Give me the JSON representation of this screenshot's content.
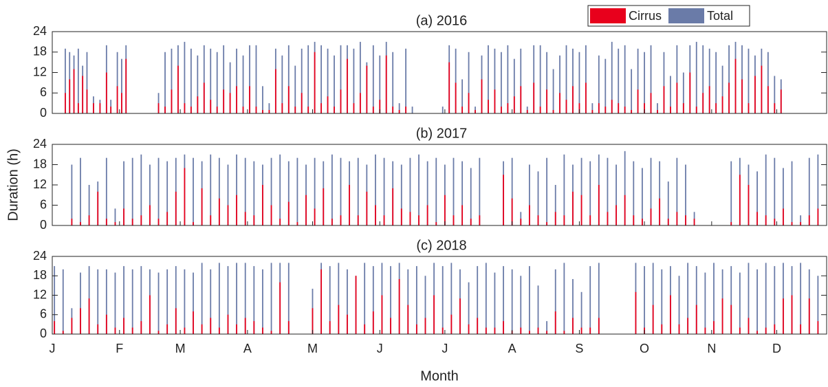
{
  "chart_data": [
    {
      "type": "bar",
      "title": "(a) 2016",
      "legend": "top-right",
      "xlim": [
        1,
        358
      ],
      "ylim": [
        0,
        24
      ],
      "yticks": [
        0,
        6,
        12,
        18,
        24
      ],
      "x": [
        7,
        9,
        11,
        13,
        15,
        17,
        20,
        23,
        26,
        28,
        31,
        33,
        35,
        50,
        53,
        56,
        59,
        62,
        65,
        68,
        71,
        74,
        77,
        80,
        83,
        86,
        89,
        92,
        95,
        98,
        101,
        104,
        107,
        110,
        113,
        116,
        119,
        122,
        125,
        128,
        131,
        134,
        137,
        140,
        143,
        146,
        149,
        152,
        155,
        158,
        161,
        164,
        167,
        181,
        184,
        187,
        190,
        193,
        196,
        199,
        202,
        205,
        208,
        211,
        214,
        217,
        220,
        223,
        226,
        229,
        232,
        235,
        238,
        241,
        244,
        247,
        250,
        253,
        256,
        259,
        262,
        265,
        268,
        271,
        274,
        277,
        280,
        283,
        286,
        289,
        292,
        295,
        298,
        301,
        304,
        307,
        310,
        313,
        316,
        319,
        322,
        325,
        328,
        331,
        334,
        337
      ],
      "series": [
        {
          "name": "Cirrus",
          "color": "#e8001c",
          "values": [
            6,
            10,
            13,
            3,
            11,
            7,
            3,
            3,
            12,
            2,
            8,
            6,
            16,
            3,
            2,
            7,
            14,
            3,
            2,
            5,
            9,
            4,
            2,
            7,
            6,
            8,
            2,
            8,
            2,
            1,
            1,
            13,
            3,
            8,
            2,
            6,
            2,
            18,
            3,
            5,
            2,
            7,
            16,
            3,
            6,
            14,
            2,
            4,
            17,
            2,
            1,
            2,
            0,
            0,
            15,
            9,
            2,
            6,
            1,
            10,
            4,
            7,
            2,
            3,
            5,
            8,
            1,
            9,
            2,
            7,
            1,
            6,
            4,
            8,
            3,
            9,
            1,
            3,
            2,
            4,
            3,
            2,
            1,
            7,
            3,
            6,
            1,
            8,
            2,
            9,
            3,
            12,
            2,
            6,
            8,
            3,
            5,
            9,
            16,
            10,
            3,
            11,
            14,
            8,
            3,
            7
          ]
        },
        {
          "name": "Total",
          "color": "#6a7ba8",
          "values": [
            19,
            18,
            17,
            19,
            14,
            18,
            5,
            4,
            20,
            4,
            18,
            16,
            20,
            6,
            18,
            19,
            20,
            21,
            19,
            17,
            20,
            19,
            18,
            20,
            15,
            19,
            17,
            20,
            20,
            8,
            3,
            19,
            17,
            20,
            14,
            19,
            20,
            21,
            20,
            19,
            17,
            20,
            20,
            19,
            21,
            15,
            20,
            17,
            21,
            18,
            3,
            19,
            2,
            2,
            20,
            19,
            10,
            18,
            2,
            17,
            20,
            19,
            18,
            20,
            16,
            19,
            2,
            20,
            20,
            18,
            13,
            17,
            20,
            19,
            18,
            20,
            3,
            17,
            16,
            21,
            19,
            20,
            13,
            19,
            18,
            20,
            3,
            18,
            11,
            20,
            12,
            20,
            21,
            20,
            19,
            18,
            14,
            20,
            21,
            20,
            19,
            17,
            19,
            18,
            11,
            10
          ]
        }
      ]
    },
    {
      "type": "bar",
      "title": "(b) 2017",
      "ylabel": "Duration (h)",
      "xlim": [
        1,
        358
      ],
      "ylim": [
        0,
        24
      ],
      "yticks": [
        0,
        6,
        12,
        18,
        24
      ],
      "x": [
        10,
        14,
        18,
        22,
        26,
        30,
        34,
        38,
        42,
        46,
        50,
        54,
        58,
        62,
        66,
        70,
        74,
        78,
        82,
        86,
        90,
        94,
        98,
        102,
        106,
        110,
        114,
        118,
        122,
        126,
        130,
        134,
        138,
        142,
        146,
        150,
        154,
        158,
        162,
        166,
        170,
        174,
        178,
        182,
        186,
        190,
        194,
        198,
        209,
        213,
        217,
        221,
        225,
        229,
        233,
        237,
        241,
        245,
        249,
        253,
        257,
        261,
        265,
        269,
        273,
        277,
        281,
        285,
        289,
        293,
        297,
        314,
        318,
        322,
        326,
        330,
        334,
        338,
        342,
        346,
        350,
        354
      ],
      "series": [
        {
          "color": "#e8001c",
          "values": [
            2,
            1,
            3,
            10,
            2,
            1,
            5,
            2,
            3,
            6,
            2,
            4,
            10,
            17,
            1,
            11,
            3,
            8,
            6,
            9,
            4,
            3,
            12,
            6,
            2,
            7,
            1,
            9,
            5,
            11,
            2,
            3,
            12,
            3,
            10,
            6,
            3,
            11,
            5,
            4,
            3,
            6,
            1,
            9,
            3,
            6,
            2,
            3,
            15,
            8,
            2,
            6,
            3,
            1,
            4,
            3,
            10,
            9,
            3,
            12,
            4,
            6,
            9,
            3,
            2,
            5,
            8,
            2,
            4,
            3,
            2,
            1,
            15,
            12,
            4,
            3,
            2,
            5,
            1,
            1,
            3,
            5
          ]
        },
        {
          "color": "#6a7ba8",
          "values": [
            18,
            20,
            12,
            13,
            20,
            5,
            19,
            20,
            21,
            18,
            20,
            19,
            20,
            21,
            20,
            19,
            21,
            20,
            18,
            21,
            20,
            19,
            18,
            20,
            21,
            19,
            20,
            18,
            20,
            19,
            21,
            20,
            19,
            20,
            18,
            21,
            20,
            19,
            18,
            20,
            21,
            19,
            20,
            18,
            20,
            19,
            17,
            20,
            19,
            20,
            4,
            18,
            16,
            20,
            12,
            21,
            18,
            20,
            19,
            21,
            20,
            18,
            22,
            19,
            17,
            20,
            19,
            13,
            20,
            18,
            4,
            19,
            20,
            18,
            16,
            21,
            20,
            17,
            19,
            3,
            20,
            21
          ]
        }
      ]
    },
    {
      "type": "bar",
      "title": "(c) 2018",
      "xlabel": "Month",
      "xlim": [
        1,
        358
      ],
      "ylim": [
        0,
        24
      ],
      "yticks": [
        0,
        6,
        12,
        18,
        24
      ],
      "xticks": [
        {
          "value": 1,
          "label": "J"
        },
        {
          "value": 32,
          "label": "F"
        },
        {
          "value": 60,
          "label": "M"
        },
        {
          "value": 91,
          "label": "A"
        },
        {
          "value": 121,
          "label": "M"
        },
        {
          "value": 152,
          "label": "J"
        },
        {
          "value": 182,
          "label": "J"
        },
        {
          "value": 213,
          "label": "A"
        },
        {
          "value": 244,
          "label": "S"
        },
        {
          "value": 274,
          "label": "O"
        },
        {
          "value": 305,
          "label": "N"
        },
        {
          "value": 335,
          "label": "D"
        }
      ],
      "x": [
        2,
        6,
        10,
        14,
        18,
        22,
        26,
        30,
        34,
        38,
        42,
        46,
        50,
        54,
        58,
        62,
        66,
        70,
        74,
        78,
        82,
        86,
        90,
        94,
        98,
        102,
        106,
        110,
        121,
        125,
        129,
        133,
        137,
        141,
        145,
        149,
        153,
        157,
        161,
        165,
        169,
        173,
        177,
        181,
        185,
        189,
        193,
        197,
        201,
        205,
        209,
        213,
        217,
        221,
        225,
        229,
        233,
        237,
        241,
        245,
        249,
        253,
        270,
        274,
        278,
        282,
        286,
        290,
        294,
        298,
        302,
        306,
        310,
        314,
        318,
        322,
        326,
        330,
        334,
        338,
        342,
        346,
        350,
        354
      ],
      "series": [
        {
          "color": "#e8001c",
          "values": [
            4,
            1,
            5,
            8,
            11,
            3,
            6,
            2,
            5,
            2,
            4,
            12,
            1,
            3,
            8,
            2,
            7,
            3,
            5,
            2,
            6,
            3,
            5,
            4,
            2,
            1,
            16,
            4,
            8,
            20,
            4,
            9,
            6,
            18,
            3,
            7,
            12,
            5,
            17,
            9,
            3,
            5,
            12,
            2,
            6,
            11,
            3,
            5,
            2,
            2,
            4,
            1,
            2,
            1,
            2,
            1,
            7,
            1,
            5,
            2,
            2,
            5,
            13,
            2,
            9,
            3,
            12,
            3,
            5,
            9,
            2,
            4,
            11,
            9,
            2,
            5,
            1,
            2,
            3,
            11,
            12,
            3,
            11,
            4
          ]
        },
        {
          "color": "#6a7ba8",
          "values": [
            21,
            20,
            8,
            19,
            21,
            20,
            20,
            19,
            21,
            20,
            21,
            20,
            19,
            20,
            21,
            20,
            19,
            22,
            20,
            22,
            21,
            22,
            22,
            21,
            20,
            22,
            22,
            22,
            14,
            22,
            21,
            22,
            20,
            18,
            22,
            21,
            22,
            21,
            22,
            20,
            21,
            18,
            22,
            21,
            22,
            20,
            16,
            21,
            22,
            19,
            21,
            20,
            18,
            21,
            15,
            4,
            20,
            22,
            17,
            13,
            21,
            22,
            22,
            21,
            22,
            20,
            21,
            18,
            22,
            21,
            19,
            22,
            20,
            21,
            19,
            22,
            20,
            22,
            21,
            22,
            21,
            22,
            20,
            18
          ]
        }
      ]
    }
  ]
}
